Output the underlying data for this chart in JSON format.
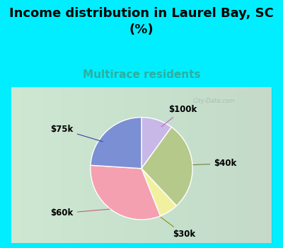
{
  "title": "Income distribution in Laurel Bay, SC\n(%)",
  "subtitle": "Multirace residents",
  "slices": [
    {
      "label": "$100k",
      "value": 10,
      "color": "#c8b8e8"
    },
    {
      "label": "$40k",
      "value": 28,
      "color": "#b5c98a"
    },
    {
      "label": "$30k",
      "value": 6,
      "color": "#f0f0a0"
    },
    {
      "label": "$60k",
      "value": 32,
      "color": "#f4a0b0"
    },
    {
      "label": "$75k",
      "value": 24,
      "color": "#7b8fd4"
    }
  ],
  "title_fontsize": 13,
  "subtitle_fontsize": 11,
  "subtitle_color": "#2ab0a0",
  "bg_cyan": "#00eeff",
  "bg_chart": "#e8f4e8",
  "title_fontweight": "bold",
  "startangle": 90,
  "watermark": "City-Data.com"
}
